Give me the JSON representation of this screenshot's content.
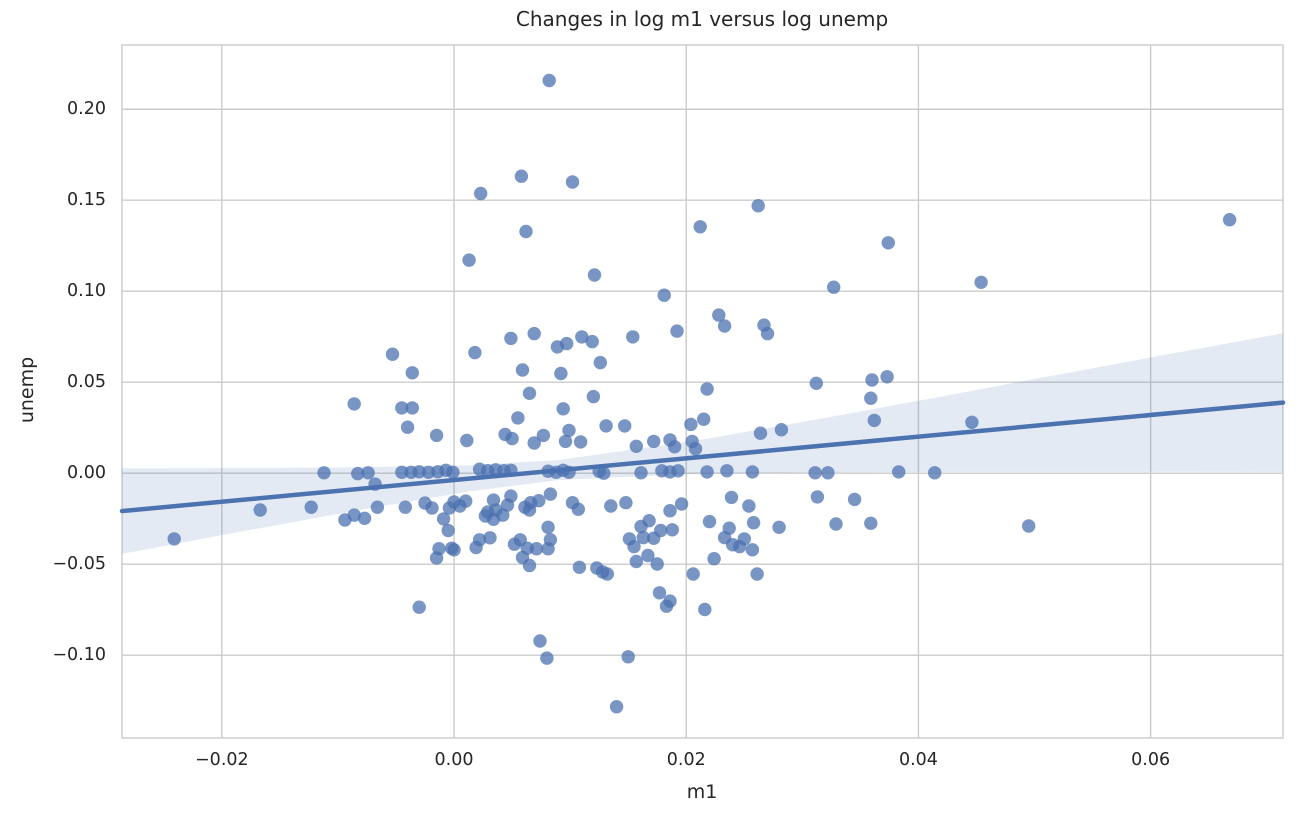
{
  "chart_data": {
    "type": "scatter",
    "title": "Changes in log m1 versus log unemp",
    "xlabel": "m1",
    "ylabel": "unemp",
    "xlim": [
      -0.0286,
      0.0714
    ],
    "ylim": [
      -0.1455,
      0.2353
    ],
    "grid": true,
    "grid_color": "#cbcbcb",
    "text_color": "#262626",
    "background_color": "#ffffff",
    "marker_color": "#4C72B0",
    "marker_alpha": 0.75,
    "marker_radius": 6.7,
    "x_ticks": {
      "values": [
        -0.02,
        0.0,
        0.02,
        0.04,
        0.06
      ],
      "labels": [
        "−0.02",
        "0.00",
        "0.02",
        "0.04",
        "0.06"
      ]
    },
    "y_ticks": {
      "values": [
        0.2,
        0.15,
        0.1,
        0.05,
        0.0,
        -0.05,
        -0.1
      ],
      "labels": [
        "0.20",
        "0.15",
        "0.10",
        "0.05",
        "0.00",
        "−0.05",
        "−0.10"
      ]
    },
    "regression_line": {
      "x": [
        -0.0286,
        0.0714
      ],
      "y": [
        -0.0208,
        0.0388
      ],
      "color": "#4C72B0",
      "width": 4.5
    },
    "confidence_band": {
      "x": [
        -0.0286,
        -0.0187,
        -0.0087,
        0.0012,
        0.009,
        0.0212,
        0.0312,
        0.0412,
        0.0511,
        0.0611,
        0.0714
      ],
      "upper": [
        0.0027,
        0.0028,
        0.0032,
        0.0043,
        0.0072,
        0.0183,
        0.0295,
        0.0412,
        0.0531,
        0.0649,
        0.0769
      ],
      "lower": [
        -0.0443,
        -0.0325,
        -0.0209,
        -0.0101,
        -0.0038,
        -0.0002,
        0.0004,
        0.0007,
        0.0007,
        0.0008,
        0.0007
      ],
      "color": "#4C72B0",
      "opacity": 0.15
    },
    "points": [
      [
        0.0082,
        0.2158
      ],
      [
        0.0058,
        0.1632
      ],
      [
        0.0102,
        0.16
      ],
      [
        0.0023,
        0.1537
      ],
      [
        0.0262,
        0.147
      ],
      [
        0.0212,
        0.1354
      ],
      [
        0.0062,
        0.1328
      ],
      [
        0.0013,
        0.1171
      ],
      [
        0.0121,
        0.1089
      ],
      [
        0.0181,
        0.0978
      ],
      [
        0.0668,
        0.1393
      ],
      [
        0.0374,
        0.1266
      ],
      [
        0.0327,
        0.1022
      ],
      [
        0.0454,
        0.1049
      ],
      [
        0.0228,
        0.0869
      ],
      [
        0.0233,
        0.0809
      ],
      [
        0.0267,
        0.0814
      ],
      [
        0.027,
        0.0767
      ],
      [
        0.0192,
        0.0781
      ],
      [
        0.0154,
        0.0749
      ],
      [
        0.0049,
        0.0741
      ],
      [
        0.0069,
        0.0767
      ],
      [
        0.011,
        0.0749
      ],
      [
        0.0119,
        0.0723
      ],
      [
        0.0018,
        0.0663
      ],
      [
        0.0089,
        0.0694
      ],
      [
        0.0097,
        0.0712
      ],
      [
        0.0126,
        0.0608
      ],
      [
        0.0059,
        0.0567
      ],
      [
        0.0092,
        0.0548
      ],
      [
        -0.0053,
        0.0654
      ],
      [
        -0.0036,
        0.0552
      ],
      [
        -0.0086,
        0.0381
      ],
      [
        -0.0045,
        0.0359
      ],
      [
        -0.0036,
        0.0359
      ],
      [
        -0.004,
        0.0253
      ],
      [
        -0.0015,
        0.0208
      ],
      [
        0.0312,
        0.0494
      ],
      [
        0.036,
        0.0512
      ],
      [
        0.0373,
        0.053
      ],
      [
        0.0359,
        0.0412
      ],
      [
        0.0362,
        0.029
      ],
      [
        0.0446,
        0.028
      ],
      [
        0.0311,
        0.0002
      ],
      [
        0.0322,
        0.0002
      ],
      [
        0.0383,
        0.0007
      ],
      [
        0.0414,
        0.0002
      ],
      [
        0.0313,
        -0.013
      ],
      [
        0.0345,
        -0.0144
      ],
      [
        0.0329,
        -0.0279
      ],
      [
        0.0359,
        -0.0275
      ],
      [
        0.0495,
        -0.029
      ],
      [
        0.0218,
        0.0463
      ],
      [
        0.0065,
        0.0439
      ],
      [
        0.012,
        0.0421
      ],
      [
        0.0094,
        0.0354
      ],
      [
        0.0055,
        0.0304
      ],
      [
        0.0044,
        0.0213
      ],
      [
        0.005,
        0.019
      ],
      [
        0.0011,
        0.018
      ],
      [
        0.0077,
        0.0208
      ],
      [
        0.0069,
        0.0166
      ],
      [
        0.0099,
        0.0235
      ],
      [
        0.0096,
        0.0175
      ],
      [
        0.0109,
        0.0172
      ],
      [
        0.0131,
        0.026
      ],
      [
        0.0147,
        0.026
      ],
      [
        0.0215,
        0.0297
      ],
      [
        0.0204,
        0.0268
      ],
      [
        0.0264,
        0.022
      ],
      [
        0.0282,
        0.0239
      ],
      [
        0.0157,
        0.0148
      ],
      [
        0.0172,
        0.0175
      ],
      [
        0.0186,
        0.0183
      ],
      [
        0.019,
        0.0145
      ],
      [
        0.0205,
        0.0175
      ],
      [
        0.0208,
        0.0134
      ],
      [
        -0.0112,
        0.0002
      ],
      [
        -0.0083,
        -0.0002
      ],
      [
        -0.0074,
        0.0002
      ],
      [
        -0.0045,
        0.0005
      ],
      [
        -0.0037,
        0.0005
      ],
      [
        -0.003,
        0.0008
      ],
      [
        -0.0022,
        0.0005
      ],
      [
        -0.0014,
        0.0008
      ],
      [
        -0.0007,
        0.0016
      ],
      [
        -0.0001,
        0.0005
      ],
      [
        0.0022,
        0.0022
      ],
      [
        0.0029,
        0.0014
      ],
      [
        0.0036,
        0.0019
      ],
      [
        0.0043,
        0.0014
      ],
      [
        0.0049,
        0.0016
      ],
      [
        0.0081,
        0.0011
      ],
      [
        0.0088,
        0.0005
      ],
      [
        0.0094,
        0.0016
      ],
      [
        0.0099,
        0.0005
      ],
      [
        0.0125,
        0.0011
      ],
      [
        0.0129,
        0.0
      ],
      [
        0.0161,
        0.0002
      ],
      [
        0.0179,
        0.0013
      ],
      [
        0.0186,
        0.0007
      ],
      [
        0.0193,
        0.0013
      ],
      [
        0.0218,
        0.0007
      ],
      [
        0.0235,
        0.0013
      ],
      [
        0.0257,
        0.0007
      ],
      [
        -0.0167,
        -0.0202
      ],
      [
        -0.0123,
        -0.0187
      ],
      [
        -0.0086,
        -0.023
      ],
      [
        -0.0077,
        -0.0248
      ],
      [
        -0.0094,
        -0.0257
      ],
      [
        -0.0066,
        -0.0187
      ],
      [
        -0.0068,
        -0.006
      ],
      [
        -0.0042,
        -0.0187
      ],
      [
        -0.0025,
        -0.0164
      ],
      [
        -0.0019,
        -0.0191
      ],
      [
        -0.0009,
        -0.0251
      ],
      [
        -0.0004,
        -0.0191
      ],
      [
        0.0,
        -0.0158
      ],
      [
        0.0005,
        -0.018
      ],
      [
        0.001,
        -0.0153
      ],
      [
        -0.0005,
        -0.0315
      ],
      [
        -0.0241,
        -0.0361
      ],
      [
        0.0029,
        -0.0213
      ],
      [
        0.0034,
        -0.0148
      ],
      [
        0.0036,
        -0.0202
      ],
      [
        0.0042,
        -0.023
      ],
      [
        0.0046,
        -0.0175
      ],
      [
        0.0049,
        -0.0126
      ],
      [
        0.0034,
        -0.0253
      ],
      [
        0.0027,
        -0.0235
      ],
      [
        0.0066,
        -0.0162
      ],
      [
        0.0073,
        -0.0151
      ],
      [
        0.0083,
        -0.0115
      ],
      [
        0.0061,
        -0.0187
      ],
      [
        0.0065,
        -0.0202
      ],
      [
        0.0081,
        -0.0297
      ],
      [
        0.0102,
        -0.0162
      ],
      [
        0.0107,
        -0.0198
      ],
      [
        0.0135,
        -0.018
      ],
      [
        0.0148,
        -0.0162
      ],
      [
        0.0186,
        -0.0206
      ],
      [
        0.0196,
        -0.0169
      ],
      [
        0.0161,
        -0.0293
      ],
      [
        0.0168,
        -0.0261
      ],
      [
        0.0178,
        -0.0315
      ],
      [
        0.0188,
        -0.0311
      ],
      [
        0.022,
        -0.0266
      ],
      [
        0.0237,
        -0.0302
      ],
      [
        0.0258,
        -0.0272
      ],
      [
        0.028,
        -0.0297
      ],
      [
        0.0239,
        -0.0133
      ],
      [
        0.0254,
        -0.018
      ],
      [
        0.0,
        -0.0421
      ],
      [
        -0.0013,
        -0.0415
      ],
      [
        -0.0015,
        -0.0466
      ],
      [
        -0.0002,
        -0.0412
      ],
      [
        0.0022,
        -0.0366
      ],
      [
        0.0019,
        -0.0408
      ],
      [
        0.0031,
        -0.0355
      ],
      [
        0.0052,
        -0.039
      ],
      [
        0.0057,
        -0.0366
      ],
      [
        0.0063,
        -0.0412
      ],
      [
        0.0071,
        -0.0415
      ],
      [
        0.0059,
        -0.0463
      ],
      [
        0.0065,
        -0.0507
      ],
      [
        0.0081,
        -0.0415
      ],
      [
        0.0083,
        -0.0366
      ],
      [
        0.0108,
        -0.0517
      ],
      [
        0.0123,
        -0.0521
      ],
      [
        0.0128,
        -0.0543
      ],
      [
        0.0132,
        -0.0554
      ],
      [
        0.0151,
        -0.0361
      ],
      [
        0.0155,
        -0.0403
      ],
      [
        0.0163,
        -0.0354
      ],
      [
        0.0167,
        -0.0452
      ],
      [
        0.0172,
        -0.0357
      ],
      [
        0.0175,
        -0.0499
      ],
      [
        0.0157,
        -0.0485
      ],
      [
        0.0206,
        -0.0554
      ],
      [
        0.0224,
        -0.047
      ],
      [
        0.0216,
        -0.0749
      ],
      [
        0.0233,
        -0.0354
      ],
      [
        0.024,
        -0.0393
      ],
      [
        0.0246,
        -0.0403
      ],
      [
        0.025,
        -0.0361
      ],
      [
        0.0257,
        -0.0421
      ],
      [
        0.0261,
        -0.0554
      ],
      [
        0.0177,
        -0.0657
      ],
      [
        0.0186,
        -0.0703
      ],
      [
        0.0183,
        -0.0731
      ],
      [
        -0.003,
        -0.0736
      ],
      [
        0.0074,
        -0.0922
      ],
      [
        0.008,
        -0.1016
      ],
      [
        0.015,
        -0.1009
      ],
      [
        0.014,
        -0.1283
      ]
    ]
  }
}
